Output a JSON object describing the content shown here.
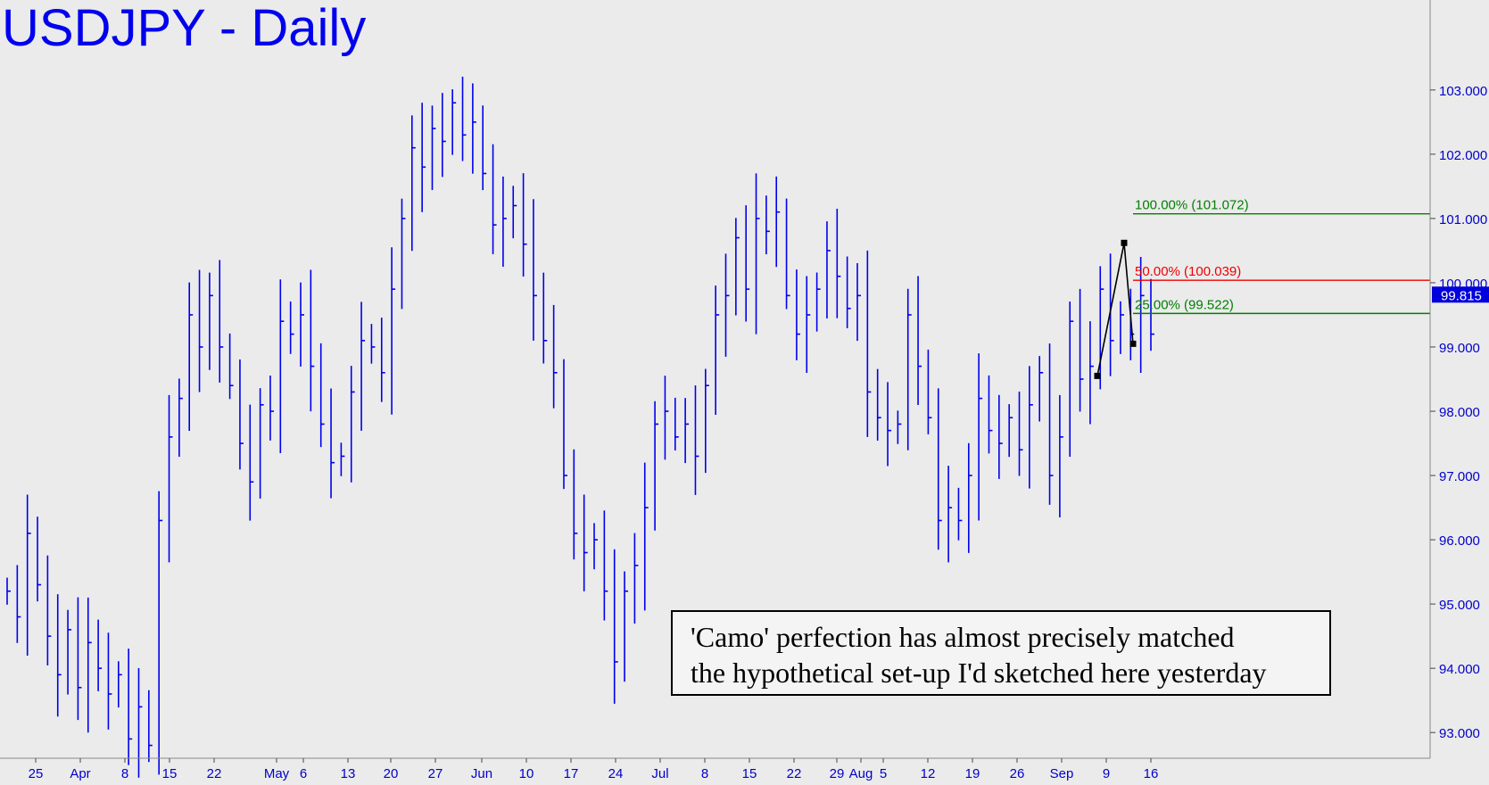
{
  "title": "USDJPY - Daily",
  "chart_data": {
    "type": "ohlc-bar",
    "title": "USDJPY - Daily",
    "y_ticks": [
      "93.000",
      "94.000",
      "95.000",
      "96.000",
      "97.000",
      "98.000",
      "99.000",
      "100.000",
      "101.000",
      "102.000",
      "103.000"
    ],
    "ylim": [
      92.6,
      104.4
    ],
    "last_price_label": "99.815",
    "x_tick_labels": [
      "25",
      "Apr",
      "8",
      "15",
      "22",
      "May",
      "6",
      "13",
      "20",
      "27",
      "Jun",
      "10",
      "17",
      "24",
      "Jul",
      "8",
      "15",
      "22",
      "29",
      "Aug",
      "5",
      "12",
      "19",
      "26",
      "Sep",
      "9",
      "16"
    ],
    "fib_levels": [
      {
        "label": "100.00% (101.072)",
        "value": 101.072,
        "color": "#008000"
      },
      {
        "label": "50.00% (100.039)",
        "value": 100.039,
        "color": "#ee0000"
      },
      {
        "label": "25.00% (99.522)",
        "value": 99.522,
        "color": "#008000"
      }
    ],
    "abc_pattern": [
      98.55,
      100.62,
      99.05
    ],
    "grid": false,
    "closes": [
      95.2,
      94.8,
      96.1,
      95.3,
      94.5,
      93.9,
      94.6,
      93.7,
      94.4,
      94.0,
      93.6,
      93.9,
      92.9,
      93.4,
      92.8,
      96.3,
      97.6,
      98.2,
      99.5,
      99.0,
      99.8,
      99.0,
      98.4,
      97.5,
      96.9,
      98.1,
      98.0,
      99.4,
      99.2,
      99.5,
      98.7,
      97.8,
      97.2,
      97.3,
      98.3,
      99.1,
      99.0,
      98.6,
      99.9,
      101.0,
      102.1,
      101.8,
      102.4,
      102.2,
      102.8,
      102.3,
      102.5,
      101.7,
      100.9,
      101.0,
      101.2,
      100.6,
      99.8,
      99.1,
      98.6,
      97.0,
      96.1,
      95.8,
      96.0,
      95.2,
      94.1,
      95.2,
      95.6,
      96.5,
      97.8,
      98.0,
      97.6,
      97.8,
      97.3,
      98.4,
      99.5,
      99.8,
      100.7,
      99.9,
      101.0,
      100.8,
      101.1,
      99.8,
      99.2,
      99.5,
      99.9,
      100.5,
      100.1,
      99.6,
      99.8,
      98.3,
      97.9,
      97.7,
      97.8,
      99.5,
      98.7,
      97.9,
      96.3,
      96.5,
      96.3,
      97.0,
      98.2,
      97.7,
      97.5,
      97.9,
      97.4,
      98.1,
      98.6,
      97.0,
      97.6,
      99.4,
      98.5,
      98.7,
      99.9,
      99.1,
      99.5,
      99.2,
      99.8,
      99.2
    ]
  }
}
